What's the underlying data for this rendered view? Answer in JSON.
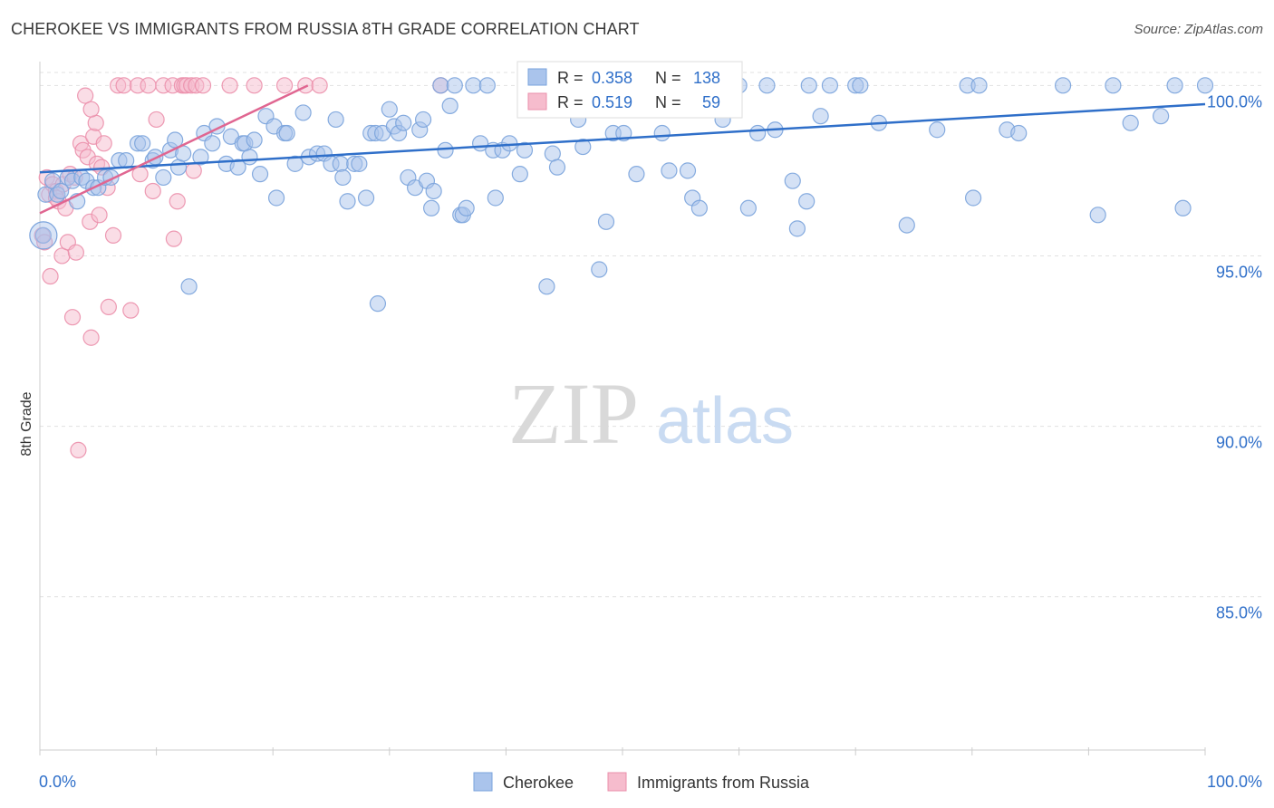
{
  "header": {
    "title": "CHEROKEE VS IMMIGRANTS FROM RUSSIA 8TH GRADE CORRELATION CHART",
    "source": "Source: ZipAtlas.com"
  },
  "watermark": {
    "zip": "ZIP",
    "atlas": "atlas"
  },
  "legend_box": {
    "row1": {
      "r_label": "R =",
      "r_value": "0.358",
      "n_label": "N =",
      "n_value": "138"
    },
    "row2": {
      "r_label": "R =",
      "r_value": "0.519",
      "n_label": "N =",
      "n_value": "59"
    }
  },
  "colors": {
    "blue_fill": "#aac4ec",
    "blue_stroke": "#7aa3dc",
    "blue_line": "#2f6fc9",
    "pink_fill": "#f6bccd",
    "pink_stroke": "#eb8fab",
    "pink_line": "#e06691",
    "value_text": "#2f6fc9",
    "grid": "#e1e1e1",
    "axis": "#cccccc"
  },
  "chart_data": {
    "type": "scatter",
    "title": "CHEROKEE VS IMMIGRANTS FROM RUSSIA 8TH GRADE CORRELATION CHART",
    "xlabel": "",
    "ylabel": "8th Grade",
    "xlim": [
      0,
      100
    ],
    "ylim": [
      80.5,
      100.7
    ],
    "x_tick_labels": [
      "0.0%",
      "100.0%"
    ],
    "y_ticks": [
      85,
      90,
      95,
      100
    ],
    "y_tick_labels": [
      "85.0%",
      "90.0%",
      "95.0%",
      "100.0%"
    ],
    "grid": "horizontal dashed",
    "legend_position": "bottom-center",
    "series": [
      {
        "name": "Cherokee",
        "color": "#aac4ec",
        "R": 0.358,
        "N": 138,
        "trend": {
          "x": [
            0,
            100
          ],
          "y": [
            97.45,
            99.45
          ]
        },
        "points": [
          [
            0.3,
            95.6
          ],
          [
            0.5,
            96.8
          ],
          [
            1.1,
            97.2
          ],
          [
            1.5,
            96.8
          ],
          [
            1.8,
            96.9
          ],
          [
            2.4,
            97.3
          ],
          [
            2.8,
            97.2
          ],
          [
            3.2,
            96.6
          ],
          [
            3.6,
            97.3
          ],
          [
            4.0,
            97.2
          ],
          [
            4.6,
            97.0
          ],
          [
            5.0,
            97.0
          ],
          [
            5.6,
            97.3
          ],
          [
            6.1,
            97.3
          ],
          [
            6.8,
            97.8
          ],
          [
            7.4,
            97.8
          ],
          [
            8.4,
            98.3
          ],
          [
            8.8,
            98.3
          ],
          [
            9.7,
            97.8
          ],
          [
            9.9,
            97.9
          ],
          [
            10.6,
            97.3
          ],
          [
            11.2,
            98.1
          ],
          [
            11.6,
            98.4
          ],
          [
            11.9,
            97.6
          ],
          [
            12.3,
            98.0
          ],
          [
            12.8,
            94.1
          ],
          [
            13.8,
            97.9
          ],
          [
            14.1,
            98.6
          ],
          [
            14.8,
            98.3
          ],
          [
            15.2,
            98.8
          ],
          [
            16.0,
            97.7
          ],
          [
            16.4,
            98.5
          ],
          [
            17.0,
            97.6
          ],
          [
            17.4,
            98.3
          ],
          [
            17.6,
            98.3
          ],
          [
            18.0,
            97.9
          ],
          [
            18.4,
            98.4
          ],
          [
            18.9,
            97.4
          ],
          [
            19.4,
            99.1
          ],
          [
            20.1,
            98.8
          ],
          [
            20.3,
            96.7
          ],
          [
            21.0,
            98.6
          ],
          [
            21.2,
            98.6
          ],
          [
            21.9,
            97.7
          ],
          [
            22.6,
            99.2
          ],
          [
            23.1,
            97.9
          ],
          [
            23.8,
            98.0
          ],
          [
            24.4,
            98.0
          ],
          [
            25.0,
            97.7
          ],
          [
            25.4,
            99.0
          ],
          [
            25.8,
            97.7
          ],
          [
            26.0,
            97.3
          ],
          [
            26.4,
            96.6
          ],
          [
            27.0,
            97.7
          ],
          [
            27.4,
            97.7
          ],
          [
            28.0,
            96.7
          ],
          [
            28.4,
            98.6
          ],
          [
            28.8,
            98.6
          ],
          [
            29.0,
            93.6
          ],
          [
            29.4,
            98.6
          ],
          [
            30.0,
            99.3
          ],
          [
            30.4,
            98.8
          ],
          [
            30.8,
            98.6
          ],
          [
            31.2,
            98.9
          ],
          [
            31.6,
            97.3
          ],
          [
            32.2,
            97.0
          ],
          [
            32.6,
            98.7
          ],
          [
            32.9,
            99.0
          ],
          [
            33.2,
            97.2
          ],
          [
            33.6,
            96.4
          ],
          [
            33.8,
            96.9
          ],
          [
            34.4,
            100.0
          ],
          [
            34.8,
            98.1
          ],
          [
            35.2,
            99.4
          ],
          [
            35.6,
            100.0
          ],
          [
            36.1,
            96.2
          ],
          [
            36.3,
            96.2
          ],
          [
            36.6,
            96.4
          ],
          [
            37.2,
            100.0
          ],
          [
            37.8,
            98.3
          ],
          [
            38.4,
            100.0
          ],
          [
            38.9,
            98.1
          ],
          [
            39.1,
            96.7
          ],
          [
            39.7,
            98.1
          ],
          [
            40.3,
            98.3
          ],
          [
            41.2,
            97.4
          ],
          [
            41.6,
            98.1
          ],
          [
            42.9,
            99.5
          ],
          [
            43.5,
            94.1
          ],
          [
            44.0,
            98.0
          ],
          [
            44.4,
            97.6
          ],
          [
            45.0,
            99.3
          ],
          [
            46.2,
            99.0
          ],
          [
            46.6,
            98.2
          ],
          [
            47.4,
            99.3
          ],
          [
            48.0,
            94.6
          ],
          [
            48.6,
            96.0
          ],
          [
            49.2,
            98.6
          ],
          [
            49.6,
            100.0
          ],
          [
            50.1,
            98.6
          ],
          [
            50.8,
            100.0
          ],
          [
            51.2,
            97.4
          ],
          [
            51.8,
            99.4
          ],
          [
            53.4,
            98.6
          ],
          [
            54.0,
            97.5
          ],
          [
            55.0,
            100.0
          ],
          [
            55.6,
            97.5
          ],
          [
            56.0,
            96.7
          ],
          [
            56.6,
            96.4
          ],
          [
            58.6,
            99.0
          ],
          [
            60.0,
            100.0
          ],
          [
            60.8,
            96.4
          ],
          [
            61.6,
            98.6
          ],
          [
            62.4,
            100.0
          ],
          [
            63.1,
            98.7
          ],
          [
            64.6,
            97.2
          ],
          [
            65.0,
            95.8
          ],
          [
            66.0,
            100.0
          ],
          [
            67.0,
            99.1
          ],
          [
            67.8,
            100.0
          ],
          [
            70.0,
            100.0
          ],
          [
            72.0,
            98.9
          ],
          [
            74.4,
            95.9
          ],
          [
            77.0,
            98.7
          ],
          [
            79.6,
            100.0
          ],
          [
            80.1,
            96.7
          ],
          [
            80.6,
            100.0
          ],
          [
            83.0,
            98.7
          ],
          [
            84.0,
            98.6
          ],
          [
            87.8,
            100.0
          ],
          [
            90.8,
            96.2
          ],
          [
            92.1,
            100.0
          ],
          [
            93.6,
            98.9
          ],
          [
            96.2,
            99.1
          ],
          [
            100.0,
            100.0
          ],
          [
            97.4,
            100.0
          ],
          [
            98.1,
            96.4
          ],
          [
            70.4,
            100.0
          ],
          [
            65.8,
            96.6
          ],
          [
            52.0,
            100.0
          ]
        ]
      },
      {
        "name": "Immigrants from Russia",
        "color": "#f6bccd",
        "R": 0.519,
        "N": 59,
        "trend": {
          "x": [
            0,
            23
          ],
          "y": [
            96.25,
            100.0
          ]
        },
        "points": [
          [
            0.2,
            95.6
          ],
          [
            0.4,
            95.4
          ],
          [
            0.6,
            97.3
          ],
          [
            0.8,
            96.8
          ],
          [
            0.9,
            94.4
          ],
          [
            1.1,
            97.1
          ],
          [
            1.4,
            96.9
          ],
          [
            1.6,
            96.6
          ],
          [
            1.9,
            95.0
          ],
          [
            2.0,
            97.1
          ],
          [
            2.2,
            96.4
          ],
          [
            2.4,
            95.4
          ],
          [
            2.6,
            97.4
          ],
          [
            2.8,
            93.2
          ],
          [
            3.0,
            97.3
          ],
          [
            3.1,
            95.1
          ],
          [
            3.3,
            89.3
          ],
          [
            3.5,
            98.3
          ],
          [
            3.7,
            98.1
          ],
          [
            3.9,
            99.7
          ],
          [
            4.1,
            97.9
          ],
          [
            4.3,
            96.0
          ],
          [
            4.4,
            92.6
          ],
          [
            4.6,
            98.5
          ],
          [
            4.8,
            98.9
          ],
          [
            4.9,
            97.7
          ],
          [
            5.1,
            96.2
          ],
          [
            5.3,
            97.6
          ],
          [
            5.5,
            98.3
          ],
          [
            5.8,
            97.0
          ],
          [
            5.9,
            93.5
          ],
          [
            6.3,
            95.6
          ],
          [
            6.7,
            100.0
          ],
          [
            7.2,
            100.0
          ],
          [
            7.8,
            93.4
          ],
          [
            8.4,
            100.0
          ],
          [
            8.6,
            97.4
          ],
          [
            9.3,
            100.0
          ],
          [
            9.7,
            96.9
          ],
          [
            10.0,
            99.0
          ],
          [
            10.6,
            100.0
          ],
          [
            11.4,
            100.0
          ],
          [
            11.8,
            96.6
          ],
          [
            12.2,
            100.0
          ],
          [
            12.4,
            100.0
          ],
          [
            12.6,
            100.0
          ],
          [
            13.0,
            100.0
          ],
          [
            13.2,
            97.5
          ],
          [
            13.4,
            100.0
          ],
          [
            14.0,
            100.0
          ],
          [
            16.3,
            100.0
          ],
          [
            18.4,
            100.0
          ],
          [
            21.0,
            100.0
          ],
          [
            22.8,
            100.0
          ],
          [
            24.0,
            100.0
          ],
          [
            34.4,
            100.0
          ],
          [
            11.5,
            95.5
          ],
          [
            4.4,
            99.3
          ],
          [
            1.4,
            96.7
          ]
        ]
      }
    ]
  },
  "legend": {
    "items": [
      {
        "label": "Cherokee"
      },
      {
        "label": "Immigrants from Russia"
      }
    ]
  }
}
